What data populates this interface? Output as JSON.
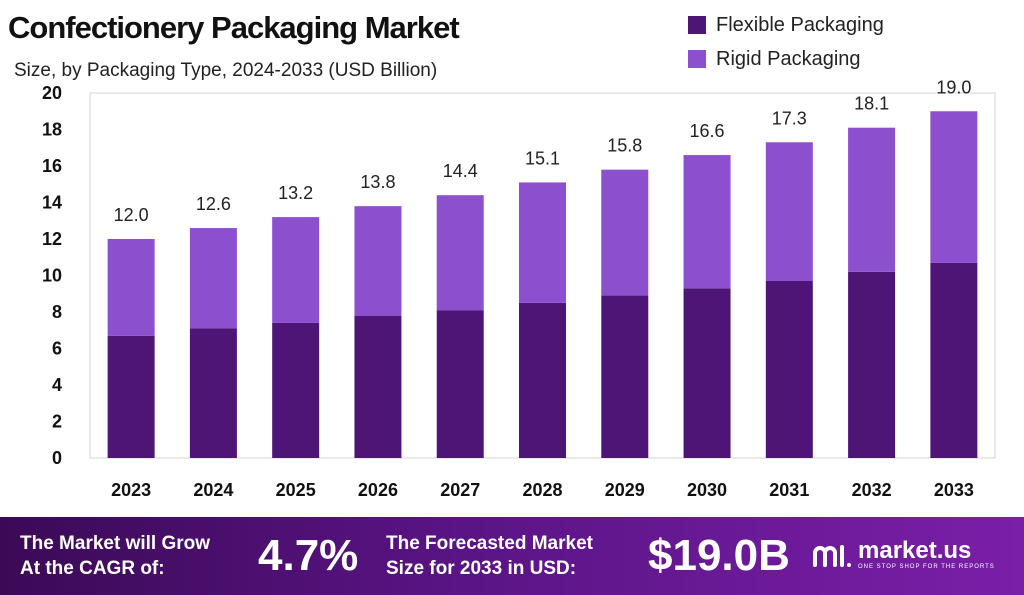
{
  "header": {
    "title": "Confectionery Packaging Market",
    "subtitle": "Size, by Packaging Type, 2024-2033 (USD Billion)"
  },
  "legend": [
    {
      "label": "Flexible Packaging",
      "color": "#4e1577"
    },
    {
      "label": "Rigid Packaging",
      "color": "#8c50cf"
    }
  ],
  "chart_data": {
    "type": "bar",
    "stacked": true,
    "title": "Confectionery Packaging Market",
    "subtitle": "Size, by Packaging Type, 2024-2033 (USD Billion)",
    "xlabel": "",
    "ylabel": "",
    "ylim": [
      0,
      20
    ],
    "yticks": [
      0,
      2,
      4,
      6,
      8,
      10,
      12,
      14,
      16,
      18,
      20
    ],
    "categories": [
      "2023",
      "2024",
      "2025",
      "2026",
      "2027",
      "2028",
      "2029",
      "2030",
      "2031",
      "2032",
      "2033"
    ],
    "series": [
      {
        "name": "Flexible Packaging",
        "color": "#4e1577",
        "values": [
          6.7,
          7.1,
          7.4,
          7.8,
          8.1,
          8.5,
          8.9,
          9.3,
          9.7,
          10.2,
          10.7
        ]
      },
      {
        "name": "Rigid Packaging",
        "color": "#8c50cf",
        "values": [
          5.3,
          5.5,
          5.8,
          6.0,
          6.3,
          6.6,
          6.9,
          7.3,
          7.6,
          7.9,
          8.3
        ]
      }
    ],
    "totals": [
      "12.0",
      "12.6",
      "13.2",
      "13.8",
      "14.4",
      "15.1",
      "15.8",
      "16.6",
      "17.3",
      "18.1",
      "19.0"
    ]
  },
  "footer": {
    "cagr_label_line1": "The Market will Grow",
    "cagr_label_line2": "At the CAGR of:",
    "cagr_value": "4.7%",
    "forecast_label_line1": "The Forecasted Market",
    "forecast_label_line2": "Size for 2033 in USD:",
    "forecast_value": "$19.0B",
    "brand_name": "market.us",
    "brand_tagline": "ONE STOP SHOP FOR THE REPORTS"
  }
}
